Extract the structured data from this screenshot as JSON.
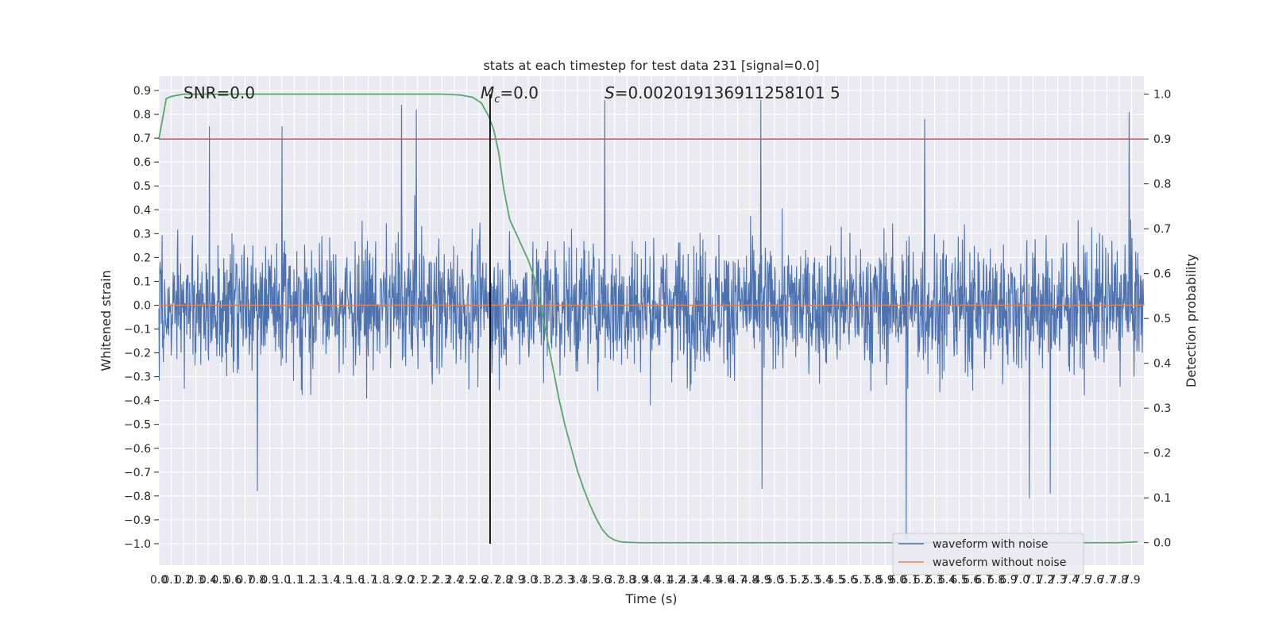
{
  "chart_data": {
    "type": "line",
    "title": "stats at each timestep for test data 231 [signal=0.0]",
    "xlabel": "Time (s)",
    "ylabel_left": "Whitened strain",
    "ylabel_right": "Detection probability",
    "xlim": [
      0.0,
      8.0
    ],
    "ylim_left": [
      -1.09,
      0.96
    ],
    "ylim_right": [
      -0.05,
      1.04
    ],
    "x_ticks": [
      "0.0",
      "0.1",
      "0.2",
      "0.3",
      "0.4",
      "0.5",
      "0.6",
      "0.7",
      "0.8",
      "0.9",
      "1.0",
      "1.1",
      "1.2",
      "1.3",
      "1.4",
      "1.5",
      "1.6",
      "1.7",
      "1.8",
      "1.9",
      "2.0",
      "2.1",
      "2.2",
      "2.3",
      "2.4",
      "2.5",
      "2.6",
      "2.7",
      "2.8",
      "2.9",
      "3.0",
      "3.1",
      "3.2",
      "3.3",
      "3.4",
      "3.5",
      "3.6",
      "3.7",
      "3.8",
      "3.9",
      "4.0",
      "4.1",
      "4.2",
      "4.3",
      "4.4",
      "4.5",
      "4.6",
      "4.7",
      "4.8",
      "4.9",
      "5.0",
      "5.1",
      "5.2",
      "5.3",
      "5.4",
      "5.5",
      "5.6",
      "5.7",
      "5.8",
      "5.9",
      "6.0",
      "6.1",
      "6.2",
      "6.3",
      "6.4",
      "6.5",
      "6.6",
      "6.7",
      "6.8",
      "6.9",
      "7.0",
      "7.1",
      "7.2",
      "7.3",
      "7.4",
      "7.5",
      "7.6",
      "7.7",
      "7.8",
      "7.9"
    ],
    "y_ticks_left": [
      "0.9",
      "0.8",
      "0.7",
      "0.6",
      "0.5",
      "0.4",
      "0.3",
      "0.2",
      "0.1",
      "0.0",
      "−0.1",
      "−0.2",
      "−0.3",
      "−0.4",
      "−0.5",
      "−0.6",
      "−0.7",
      "−0.8",
      "−0.9",
      "−1.0"
    ],
    "y_ticks_right": [
      "1.0",
      "0.9",
      "0.8",
      "0.7",
      "0.6",
      "0.5",
      "0.4",
      "0.3",
      "0.2",
      "0.1",
      "0.0"
    ],
    "annotations": {
      "snr": "SNR=0.0",
      "mc_symbol": "M",
      "mc_sub": "c",
      "mc_value": "=0.0",
      "s_symbol": "S",
      "s_value": "=0.002019136911258101 5"
    },
    "threshold": 0.9,
    "vline_x": 2.69,
    "legend": {
      "placement": "lower-right",
      "entries": [
        "waveform with noise",
        "waveform without noise"
      ]
    },
    "series": [
      {
        "name": "waveform with noise",
        "axis": "left",
        "description_values": "dense noise, typical amplitude about ±0.3, peaks to about 0.86 and down to about −0.98",
        "spikes": [
          [
            0.41,
            0.75
          ],
          [
            1.0,
            0.75
          ],
          [
            1.97,
            0.84
          ],
          [
            2.09,
            0.82
          ],
          [
            3.62,
            0.86
          ],
          [
            4.89,
            0.86
          ],
          [
            6.22,
            0.78
          ],
          [
            7.88,
            0.81
          ],
          [
            0.8,
            -0.78
          ],
          [
            4.9,
            -0.77
          ],
          [
            6.07,
            -0.98
          ],
          [
            7.07,
            -0.81
          ],
          [
            7.24,
            -0.79
          ]
        ]
      },
      {
        "name": "waveform without noise",
        "axis": "left",
        "x": [
          0.0,
          8.0
        ],
        "y": [
          0.0,
          0.0
        ]
      },
      {
        "name": "detection probability",
        "axis": "right",
        "x": [
          0.0,
          0.06,
          0.1,
          0.2,
          0.5,
          1.0,
          1.5,
          2.0,
          2.3,
          2.45,
          2.55,
          2.62,
          2.68,
          2.72,
          2.76,
          2.8,
          2.85,
          2.9,
          2.95,
          3.0,
          3.05,
          3.1,
          3.15,
          3.2,
          3.25,
          3.3,
          3.35,
          3.4,
          3.45,
          3.5,
          3.55,
          3.6,
          3.65,
          3.7,
          3.75,
          3.8,
          3.9,
          4.0,
          5.0,
          6.0,
          7.0,
          7.5,
          7.8,
          7.95
        ],
        "y": [
          0.9,
          0.99,
          0.995,
          1.0,
          1.0,
          1.0,
          1.0,
          1.0,
          1.0,
          0.998,
          0.993,
          0.98,
          0.95,
          0.92,
          0.87,
          0.79,
          0.72,
          0.69,
          0.66,
          0.63,
          0.59,
          0.53,
          0.46,
          0.39,
          0.32,
          0.26,
          0.21,
          0.16,
          0.12,
          0.085,
          0.055,
          0.03,
          0.014,
          0.006,
          0.002,
          0.001,
          0.0,
          0.0,
          0.0,
          0.0,
          0.0,
          0.0,
          0.0,
          0.002
        ]
      }
    ],
    "colors": {
      "noise": "#4c72b0",
      "clean": "#dd8452",
      "prob": "#55a868",
      "threshold": "#c44e52",
      "vline": "#000000",
      "plot_bg": "#eaeaf2",
      "grid": "#ffffff"
    }
  }
}
